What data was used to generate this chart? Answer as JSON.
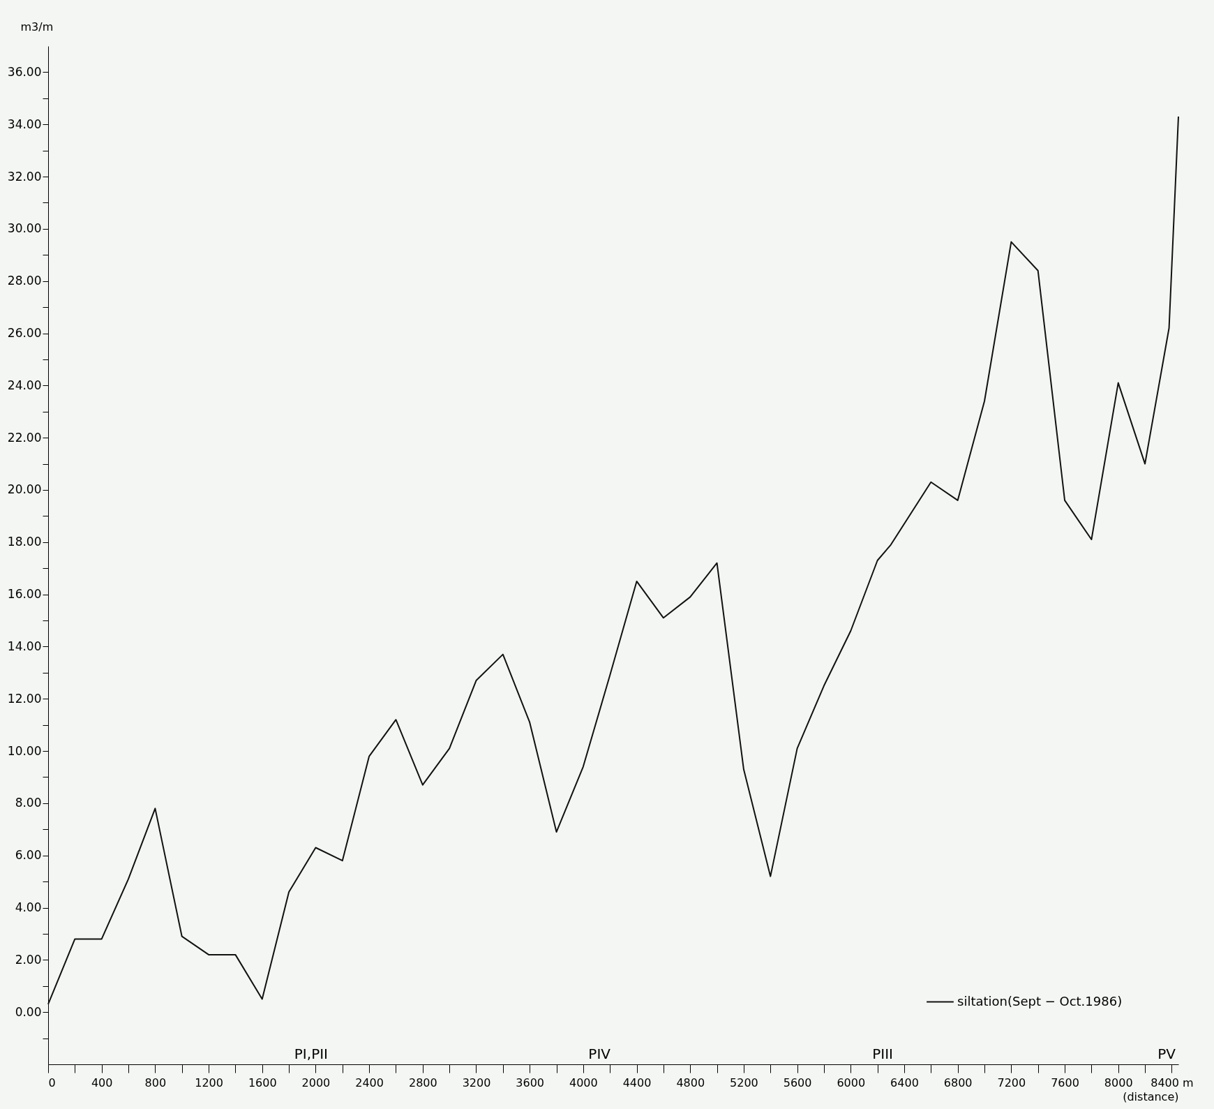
{
  "chart_data": {
    "type": "line",
    "ylabel": "m3/m",
    "xlabel": "(distance)",
    "x": [
      0,
      200,
      400,
      600,
      800,
      1000,
      1200,
      1400,
      1600,
      1800,
      2000,
      2200,
      2400,
      2600,
      2800,
      3000,
      3200,
      3400,
      3600,
      3800,
      4000,
      4200,
      4400,
      4600,
      4800,
      5000,
      5200,
      5400,
      5600,
      5800,
      6000,
      6200,
      6300,
      6600,
      6800,
      7000,
      7200,
      7400,
      7600,
      7800,
      8000,
      8200,
      8380,
      8450
    ],
    "series": [
      {
        "name": "siltation(Sept − Oct.1986)",
        "color": "#111111",
        "values": [
          0.3,
          2.8,
          2.8,
          5.1,
          7.8,
          2.9,
          2.2,
          2.2,
          0.5,
          4.6,
          6.3,
          5.8,
          9.8,
          11.2,
          8.7,
          10.1,
          12.7,
          13.7,
          11.1,
          6.9,
          9.4,
          12.9,
          16.5,
          15.1,
          15.9,
          17.2,
          9.3,
          5.2,
          10.1,
          12.5,
          14.6,
          17.3,
          17.9,
          20.3,
          19.6,
          23.4,
          29.5,
          28.4,
          19.6,
          18.1,
          24.1,
          21.0,
          26.2,
          34.3
        ]
      }
    ],
    "xlim": [
      0,
      8450
    ],
    "ylim": [
      -2,
      37
    ],
    "xticks": [
      0,
      {
        "value": 200,
        "label": null
      },
      400,
      {
        "value": 600,
        "label": null
      },
      800,
      {
        "value": 1000,
        "label": null
      },
      1200,
      {
        "value": 1400,
        "label": null
      },
      1600,
      {
        "value": 1800,
        "label": null
      },
      2000,
      {
        "value": 2200,
        "label": null
      },
      2400,
      {
        "value": 2600,
        "label": null
      },
      2800,
      {
        "value": 3000,
        "label": null
      },
      3200,
      {
        "value": 3400,
        "label": null
      },
      3600,
      {
        "value": 3800,
        "label": null
      },
      4000,
      {
        "value": 4200,
        "label": null
      },
      4400,
      {
        "value": 4600,
        "label": null
      },
      4800,
      {
        "value": 5000,
        "label": null
      },
      5200,
      {
        "value": 5400,
        "label": null
      },
      5600,
      {
        "value": 5800,
        "label": null
      },
      6000,
      {
        "value": 6200,
        "label": null
      },
      6400,
      {
        "value": 6600,
        "label": null
      },
      6800,
      {
        "value": 7000,
        "label": null
      },
      7200,
      {
        "value": 7400,
        "label": null
      },
      7600,
      {
        "value": 7800,
        "label": null
      },
      8000,
      {
        "value": 8200,
        "label": null
      },
      {
        "value": 8400,
        "label": "8400 m"
      }
    ],
    "yticks": [
      {
        "value": -1,
        "label": null
      },
      {
        "value": 0,
        "label": "0.00"
      },
      {
        "value": 1,
        "label": null
      },
      {
        "value": 2,
        "label": "2.00"
      },
      {
        "value": 3,
        "label": null
      },
      {
        "value": 4,
        "label": "4.00"
      },
      {
        "value": 5,
        "label": null
      },
      {
        "value": 6,
        "label": "6.00"
      },
      {
        "value": 7,
        "label": null
      },
      {
        "value": 8,
        "label": "8.00"
      },
      {
        "value": 9,
        "label": null
      },
      {
        "value": 10,
        "label": "10.00"
      },
      {
        "value": 11,
        "label": null
      },
      {
        "value": 12,
        "label": "12.00"
      },
      {
        "value": 13,
        "label": null
      },
      {
        "value": 14,
        "label": "14.00"
      },
      {
        "value": 15,
        "label": null
      },
      {
        "value": 16,
        "label": "16.00"
      },
      {
        "value": 17,
        "label": null
      },
      {
        "value": 18,
        "label": "18.00"
      },
      {
        "value": 19,
        "label": null
      },
      {
        "value": 20,
        "label": "20.00"
      },
      {
        "value": 21,
        "label": null
      },
      {
        "value": 22,
        "label": "22.00"
      },
      {
        "value": 23,
        "label": null
      },
      {
        "value": 24,
        "label": "24.00"
      },
      {
        "value": 25,
        "label": null
      },
      {
        "value": 26,
        "label": "26.00"
      },
      {
        "value": 27,
        "label": null
      },
      {
        "value": 28,
        "label": "28.00"
      },
      {
        "value": 29,
        "label": null
      },
      {
        "value": 30,
        "label": "30.00"
      },
      {
        "value": 31,
        "label": null
      },
      {
        "value": 32,
        "label": "32.00"
      },
      {
        "value": 33,
        "label": null
      },
      {
        "value": 34,
        "label": "34.00"
      },
      {
        "value": 35,
        "label": null
      },
      {
        "value": 36,
        "label": "36.00"
      }
    ],
    "annotations": [
      "PI,PII",
      "PIV",
      "PIII",
      "PV"
    ],
    "legend": "bottom right",
    "grid": false,
    "marker": "none",
    "line_style": "solid"
  }
}
